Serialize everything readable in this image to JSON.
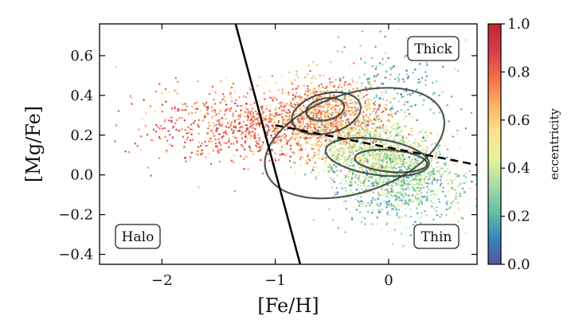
{
  "chart_data": {
    "type": "scatter",
    "xlabel": "[Fe/H]",
    "ylabel": "[Mg/Fe]",
    "xlim": [
      -2.55,
      0.78
    ],
    "ylim": [
      -0.45,
      0.76
    ],
    "x_ticks": [
      -2,
      -1,
      0
    ],
    "x_tick_labels": [
      "−2",
      "−1",
      "0"
    ],
    "y_ticks": [
      -0.4,
      -0.2,
      0.0,
      0.2,
      0.4,
      0.6
    ],
    "y_tick_labels": [
      "−0.4",
      "−0.2",
      "0.0",
      "0.2",
      "0.4",
      "0.6"
    ],
    "colorbar": {
      "label": "eccentricity",
      "range": [
        0.0,
        1.0
      ],
      "ticks": [
        0.0,
        0.2,
        0.4,
        0.6,
        0.8,
        1.0
      ],
      "tick_labels": [
        "0.0",
        "0.2",
        "0.4",
        "0.6",
        "0.8",
        "1.0"
      ],
      "colormap": "spectral_r",
      "colors": [
        "#5e4fa2",
        "#3288bd",
        "#66c2a5",
        "#abdda4",
        "#e6f598",
        "#fee08b",
        "#fdae61",
        "#f46d43",
        "#d53e4f",
        "#c1272d"
      ]
    },
    "region_labels": [
      {
        "text": "Thick"
      },
      {
        "text": "Thin"
      },
      {
        "text": "Halo"
      }
    ],
    "halo_divider_line": {
      "style": "solid",
      "points": [
        [
          -1.35,
          0.76
        ],
        [
          -0.78,
          -0.45
        ]
      ]
    },
    "thick_thin_divider_line": {
      "style": "dashed",
      "points": [
        [
          -1.0,
          0.25
        ],
        [
          0.78,
          0.05
        ]
      ]
    },
    "populations": [
      {
        "center": [
          -1.1,
          0.24
        ],
        "spread": [
          0.45,
          0.08
        ],
        "ecc": [
          0.82,
          0.1
        ],
        "n": 650
      },
      {
        "center": [
          -0.55,
          0.3
        ],
        "spread": [
          0.28,
          0.09
        ],
        "ecc": [
          0.68,
          0.12
        ],
        "n": 900
      },
      {
        "center": [
          -0.1,
          0.1
        ],
        "spread": [
          0.3,
          0.09
        ],
        "ecc": [
          0.42,
          0.1
        ],
        "n": 1300
      },
      {
        "center": [
          0.1,
          -0.05
        ],
        "spread": [
          0.32,
          0.1
        ],
        "ecc": [
          0.25,
          0.1
        ],
        "n": 650
      },
      {
        "center": [
          -1.7,
          0.28
        ],
        "spread": [
          0.35,
          0.12
        ],
        "ecc": [
          0.75,
          0.12
        ],
        "n": 160
      },
      {
        "center": [
          0.0,
          0.45
        ],
        "spread": [
          0.35,
          0.12
        ],
        "ecc": [
          0.2,
          0.1
        ],
        "n": 200
      }
    ],
    "contours": [
      {
        "center": [
          -0.55,
          0.31
        ],
        "rx": 0.31,
        "ry": 0.1,
        "angle_deg": -14
      },
      {
        "center": [
          -0.56,
          0.33
        ],
        "rx": 0.17,
        "ry": 0.055,
        "angle_deg": -12
      },
      {
        "center": [
          -0.1,
          0.09
        ],
        "rx": 0.46,
        "ry": 0.09,
        "angle_deg": 8
      },
      {
        "center": [
          0.02,
          0.07
        ],
        "rx": 0.32,
        "ry": 0.055,
        "angle_deg": 5
      },
      {
        "center": [
          -0.3,
          0.16
        ],
        "rx": 0.82,
        "ry": 0.25,
        "angle_deg": -18
      }
    ]
  }
}
